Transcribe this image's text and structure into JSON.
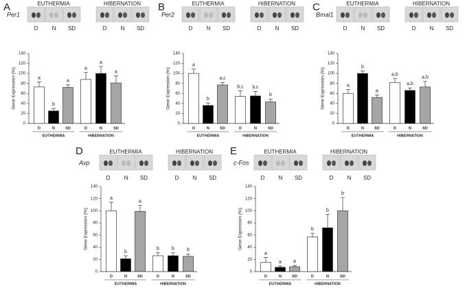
{
  "chart_data": [
    {
      "type": "bar",
      "panel": "A",
      "gene": "Per1",
      "ylabel": "Gene Expression (%)",
      "groups": [
        "EUTHERMIA",
        "HIBERNATION"
      ],
      "categories": [
        "D",
        "N",
        "SD",
        "D",
        "N",
        "SD"
      ],
      "colors": [
        "#ffffff",
        "#000000",
        "#a6a6a6",
        "#ffffff",
        "#000000",
        "#a6a6a6"
      ],
      "values": [
        73,
        25,
        72,
        88,
        100,
        81
      ],
      "errors": [
        10,
        5,
        5,
        14,
        14,
        14
      ],
      "annotations": [
        "a",
        "b",
        "a",
        "a",
        "a",
        "a"
      ],
      "ylim": [
        0,
        140
      ],
      "yticks": [
        0,
        20,
        40,
        60,
        80,
        100,
        120,
        140
      ]
    },
    {
      "type": "bar",
      "panel": "B",
      "gene": "Per2",
      "ylabel": "Gene Expression (%)",
      "groups": [
        "EUTHERMIA",
        "HIBERNATION"
      ],
      "categories": [
        "D",
        "N",
        "SD",
        "D",
        "N",
        "SD"
      ],
      "colors": [
        "#ffffff",
        "#000000",
        "#a6a6a6",
        "#ffffff",
        "#000000",
        "#a6a6a6"
      ],
      "values": [
        100,
        36,
        77,
        54,
        55,
        43
      ],
      "errors": [
        9,
        5,
        5,
        11,
        9,
        6
      ],
      "annotations": [
        "a",
        "b",
        "a,c",
        "b,c",
        "b,c",
        "b"
      ],
      "ylim": [
        0,
        140
      ],
      "yticks": [
        0,
        20,
        40,
        60,
        80,
        100,
        120,
        140
      ]
    },
    {
      "type": "bar",
      "panel": "C",
      "gene": "Bmal1",
      "ylabel": "Gene Expression (%)",
      "groups": [
        "EUTHERMIA",
        "HIBERNATION"
      ],
      "categories": [
        "D",
        "N",
        "SD",
        "D",
        "N",
        "SD"
      ],
      "colors": [
        "#ffffff",
        "#000000",
        "#a6a6a6",
        "#ffffff",
        "#000000",
        "#a6a6a6"
      ],
      "values": [
        60,
        100,
        52,
        82,
        66,
        73
      ],
      "errors": [
        8,
        5,
        5,
        8,
        5,
        11
      ],
      "annotations": [
        "a",
        "b",
        "a",
        "a,b",
        "a,b",
        "a,b"
      ],
      "ylim": [
        0,
        140
      ],
      "yticks": [
        0,
        20,
        40,
        60,
        80,
        100,
        120,
        140
      ]
    },
    {
      "type": "bar",
      "panel": "D",
      "gene": "Avp",
      "ylabel": "Gene Expression (%)",
      "groups": [
        "EUTHERMIA",
        "HIBERNATION"
      ],
      "categories": [
        "D",
        "N",
        "SD",
        "D",
        "N",
        "SD"
      ],
      "colors": [
        "#ffffff",
        "#000000",
        "#a6a6a6",
        "#ffffff",
        "#000000",
        "#a6a6a6"
      ],
      "values": [
        100,
        21,
        99,
        26,
        26,
        25
      ],
      "errors": [
        14,
        5,
        10,
        5,
        5,
        4
      ],
      "annotations": [
        "a",
        "b",
        "a",
        "b",
        "b",
        "b"
      ],
      "ylim": [
        0,
        140
      ],
      "yticks": [
        0,
        20,
        40,
        60,
        80,
        100,
        120,
        140
      ]
    },
    {
      "type": "bar",
      "panel": "E",
      "gene": "c-Fos",
      "ylabel": "Gene Expression (%)",
      "groups": [
        "EUTHERMIA",
        "HIBERNATION"
      ],
      "categories": [
        "D",
        "N",
        "SD",
        "D",
        "N",
        "SD"
      ],
      "colors": [
        "#ffffff",
        "#000000",
        "#a6a6a6",
        "#ffffff",
        "#000000",
        "#a6a6a6"
      ],
      "values": [
        15,
        7,
        8,
        57,
        72,
        100
      ],
      "errors": [
        8,
        2,
        2,
        6,
        22,
        22
      ],
      "annotations": [
        "a",
        "a",
        "a",
        "b",
        "b",
        "b"
      ],
      "ylim": [
        0,
        140
      ],
      "yticks": [
        0,
        20,
        40,
        60,
        80,
        100,
        120,
        140
      ]
    }
  ]
}
